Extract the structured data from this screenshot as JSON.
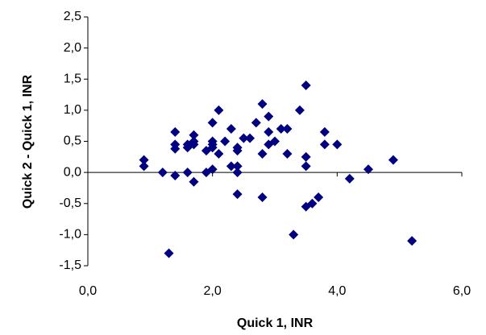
{
  "chart_data": {
    "type": "scatter",
    "x_label": "Quick 1, INR",
    "y_label": "Quick 2 - Quick 1, INR",
    "color": "#000080",
    "xlim": [
      0,
      6
    ],
    "ylim": [
      -1.5,
      2.5
    ],
    "xticks": [
      {
        "value": 0,
        "label": "0,0"
      },
      {
        "value": 2,
        "label": "2,0"
      },
      {
        "value": 4,
        "label": "4,0"
      },
      {
        "value": 6,
        "label": "6,0"
      }
    ],
    "yticks": [
      {
        "value": -1.5,
        "label": "-1,5"
      },
      {
        "value": -1,
        "label": "-1,0"
      },
      {
        "value": -0.5,
        "label": "-0,5"
      },
      {
        "value": 0,
        "label": "0,0"
      },
      {
        "value": 0.5,
        "label": "0,5"
      },
      {
        "value": 1,
        "label": "1,0"
      },
      {
        "value": 1.5,
        "label": "1,5"
      },
      {
        "value": 2,
        "label": "2,0"
      },
      {
        "value": 2.5,
        "label": "2,5"
      }
    ],
    "x": [
      0.9,
      0.9,
      1.2,
      1.3,
      1.4,
      1.4,
      1.4,
      1.4,
      1.6,
      1.6,
      1.6,
      1.7,
      1.7,
      1.7,
      1.7,
      1.9,
      1.9,
      2.0,
      2.0,
      2.0,
      2.0,
      2.0,
      2.1,
      2.1,
      2.2,
      2.3,
      2.3,
      2.4,
      2.4,
      2.4,
      2.4,
      2.4,
      2.5,
      2.6,
      2.7,
      2.8,
      2.8,
      2.8,
      2.9,
      2.9,
      2.9,
      3.0,
      3.1,
      3.2,
      3.2,
      3.3,
      3.4,
      3.5,
      3.5,
      3.5,
      3.5,
      3.6,
      3.7,
      3.8,
      3.8,
      4.0,
      4.2,
      4.5,
      4.9,
      5.2
    ],
    "values": [
      0.2,
      0.1,
      0.0,
      -1.3,
      0.65,
      0.45,
      0.38,
      -0.05,
      0.45,
      0.4,
      0.0,
      0.5,
      0.45,
      0.6,
      -0.15,
      0.0,
      0.35,
      0.8,
      0.5,
      0.4,
      0.05,
      0.45,
      1.0,
      0.3,
      0.5,
      0.7,
      0.1,
      0.1,
      0.35,
      0.4,
      0.0,
      -0.35,
      0.55,
      0.55,
      0.8,
      1.1,
      0.3,
      -0.4,
      0.45,
      0.9,
      0.65,
      0.5,
      0.7,
      0.7,
      0.3,
      -1.0,
      1.0,
      1.4,
      0.25,
      0.1,
      -0.55,
      -0.5,
      -0.4,
      0.65,
      0.45,
      0.45,
      -0.1,
      0.05,
      0.2,
      -1.1
    ]
  }
}
